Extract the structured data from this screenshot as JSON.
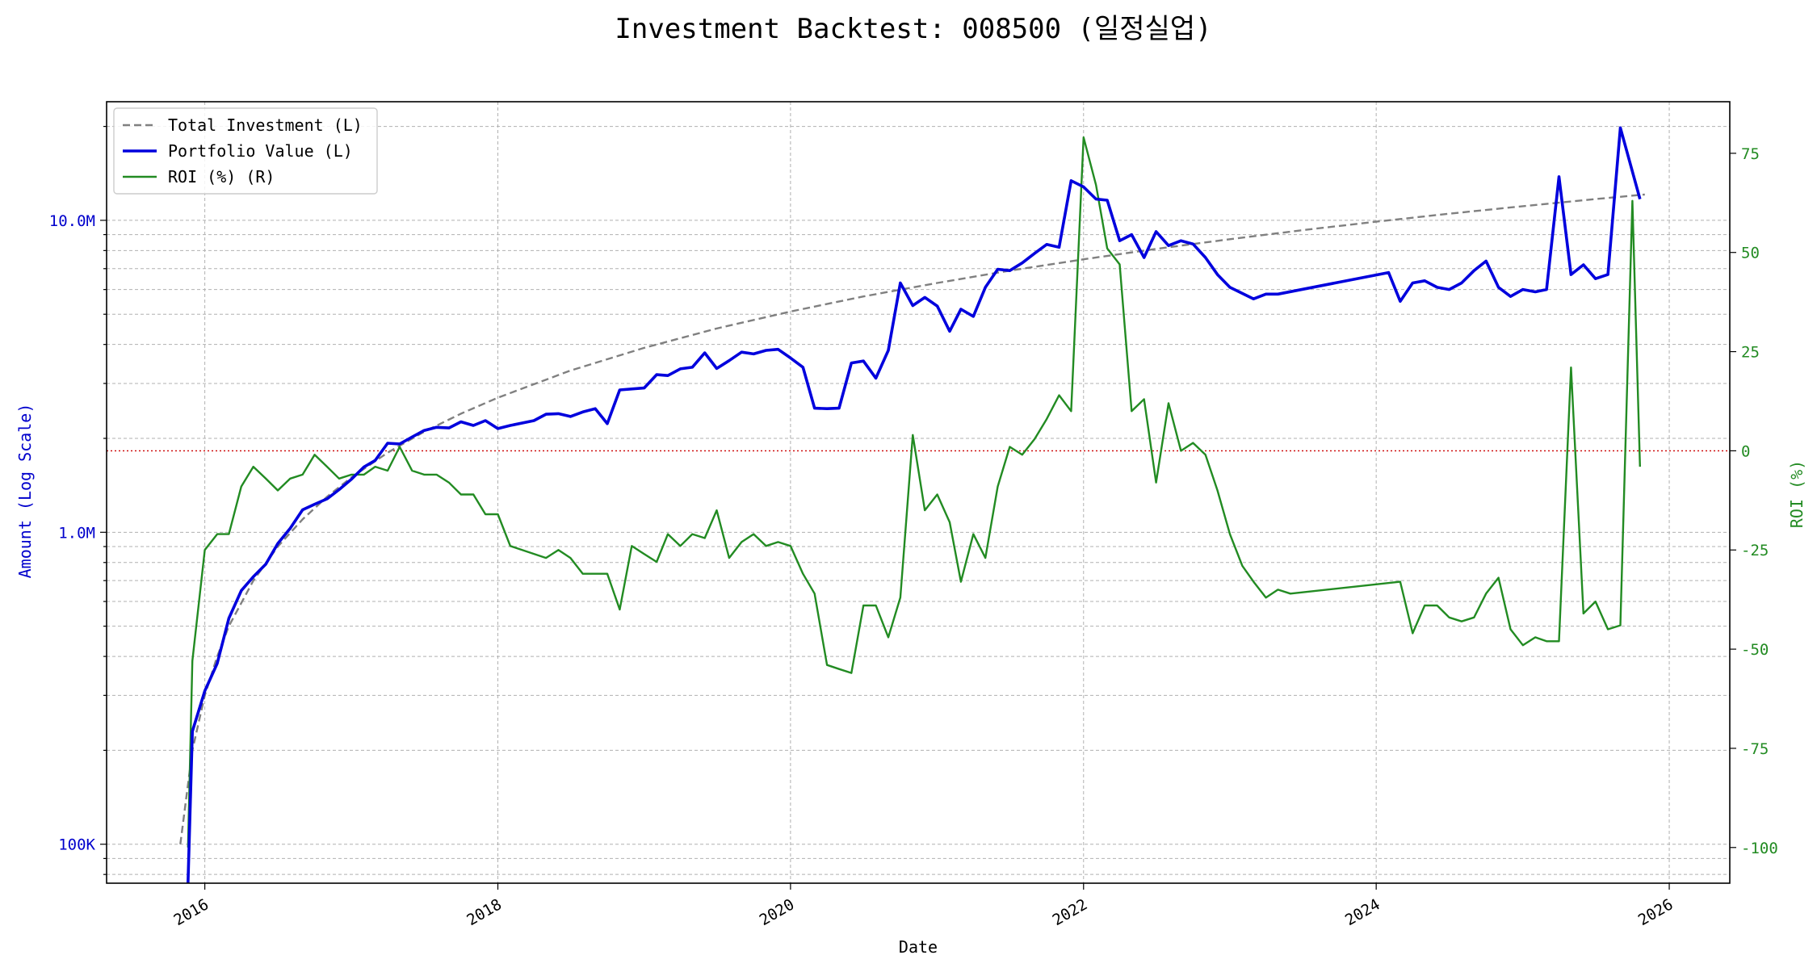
{
  "chart_data": {
    "type": "line",
    "title": "Investment Backtest: 008500 (일정실업)",
    "xlabel": "Date",
    "ylabel_left": "Amount (Log Scale)",
    "ylabel_right": "ROI (%)",
    "y_left_scale": "log",
    "y_left_range": [
      75000,
      24000000
    ],
    "y_left_ticks": [
      {
        "value": 100000,
        "label": "100K"
      },
      {
        "value": 1000000,
        "label": "1.0M"
      },
      {
        "value": 10000000,
        "label": "10.0M"
      }
    ],
    "y_right_range": [
      -109,
      88
    ],
    "y_right_ticks": [
      -100,
      -75,
      -50,
      -25,
      0,
      25,
      50,
      75
    ],
    "x_range": [
      "2015-05-01",
      "2026-06-01"
    ],
    "x_ticks": [
      "2016",
      "2018",
      "2020",
      "2022",
      "2024",
      "2026"
    ],
    "grid": true,
    "legend_position": "top-left",
    "zero_line": {
      "axis": "right",
      "value": 0,
      "color": "#cc0000",
      "style": "dotted"
    },
    "series": [
      {
        "name": "Total Investment (L)",
        "axis": "left",
        "color": "#808080",
        "style": "dashed",
        "points": [
          [
            "2015-11-01",
            100000
          ],
          [
            "2015-12-01",
            200000
          ],
          [
            "2016-01-01",
            300000
          ],
          [
            "2016-02-01",
            400000
          ],
          [
            "2016-03-01",
            500000
          ],
          [
            "2016-05-01",
            700000
          ],
          [
            "2016-07-01",
            900000
          ],
          [
            "2016-09-01",
            1100000
          ],
          [
            "2016-11-01",
            1300000
          ],
          [
            "2017-01-01",
            1500000
          ],
          [
            "2017-04-01",
            1800000
          ],
          [
            "2017-07-01",
            2100000
          ],
          [
            "2017-10-01",
            2400000
          ],
          [
            "2018-01-01",
            2700000
          ],
          [
            "2018-07-01",
            3300000
          ],
          [
            "2019-01-01",
            3900000
          ],
          [
            "2019-07-01",
            4500000
          ],
          [
            "2020-01-01",
            5100000
          ],
          [
            "2020-07-01",
            5700000
          ],
          [
            "2021-01-01",
            6300000
          ],
          [
            "2021-07-01",
            6900000
          ],
          [
            "2022-01-01",
            7500000
          ],
          [
            "2022-07-01",
            8100000
          ],
          [
            "2023-01-01",
            8700000
          ],
          [
            "2023-07-01",
            9300000
          ],
          [
            "2024-01-01",
            9900000
          ],
          [
            "2024-07-01",
            10500000
          ],
          [
            "2025-01-01",
            11100000
          ],
          [
            "2025-07-01",
            11700000
          ],
          [
            "2025-11-01",
            12100000
          ]
        ]
      },
      {
        "name": "Portfolio Value (L)",
        "axis": "left",
        "color": "#0000dd",
        "style": "solid",
        "points": [
          [
            "2015-11-20",
            60000
          ],
          [
            "2015-12-01",
            230000
          ],
          [
            "2016-01-01",
            310000
          ],
          [
            "2016-02-01",
            380000
          ],
          [
            "2016-03-01",
            530000
          ],
          [
            "2016-04-01",
            650000
          ],
          [
            "2016-05-01",
            720000
          ],
          [
            "2016-06-01",
            790000
          ],
          [
            "2016-07-01",
            920000
          ],
          [
            "2016-08-01",
            1030000
          ],
          [
            "2016-09-01",
            1180000
          ],
          [
            "2016-10-01",
            1230000
          ],
          [
            "2016-11-01",
            1280000
          ],
          [
            "2016-12-01",
            1370000
          ],
          [
            "2017-01-01",
            1480000
          ],
          [
            "2017-02-01",
            1620000
          ],
          [
            "2017-03-01",
            1700000
          ],
          [
            "2017-04-01",
            1930000
          ],
          [
            "2017-05-01",
            1920000
          ],
          [
            "2017-06-01",
            2020000
          ],
          [
            "2017-07-01",
            2120000
          ],
          [
            "2017-08-01",
            2170000
          ],
          [
            "2017-09-01",
            2160000
          ],
          [
            "2017-10-01",
            2260000
          ],
          [
            "2017-11-01",
            2200000
          ],
          [
            "2017-12-01",
            2280000
          ],
          [
            "2018-01-01",
            2150000
          ],
          [
            "2018-02-01",
            2200000
          ],
          [
            "2018-04-01",
            2280000
          ],
          [
            "2018-05-01",
            2390000
          ],
          [
            "2018-06-01",
            2400000
          ],
          [
            "2018-07-01",
            2350000
          ],
          [
            "2018-08-01",
            2430000
          ],
          [
            "2018-09-01",
            2490000
          ],
          [
            "2018-10-01",
            2230000
          ],
          [
            "2018-11-01",
            2860000
          ],
          [
            "2019-01-01",
            2900000
          ],
          [
            "2019-02-01",
            3200000
          ],
          [
            "2019-03-01",
            3180000
          ],
          [
            "2019-04-01",
            3340000
          ],
          [
            "2019-05-01",
            3380000
          ],
          [
            "2019-06-01",
            3760000
          ],
          [
            "2019-07-01",
            3350000
          ],
          [
            "2019-08-01",
            3550000
          ],
          [
            "2019-09-01",
            3780000
          ],
          [
            "2019-10-01",
            3730000
          ],
          [
            "2019-11-01",
            3830000
          ],
          [
            "2019-12-01",
            3860000
          ],
          [
            "2020-01-01",
            3620000
          ],
          [
            "2020-02-01",
            3380000
          ],
          [
            "2020-03-01",
            2500000
          ],
          [
            "2020-04-01",
            2490000
          ],
          [
            "2020-05-01",
            2500000
          ],
          [
            "2020-06-01",
            3490000
          ],
          [
            "2020-07-01",
            3540000
          ],
          [
            "2020-08-01",
            3120000
          ],
          [
            "2020-09-01",
            3830000
          ],
          [
            "2020-10-01",
            6300000
          ],
          [
            "2020-11-01",
            5330000
          ],
          [
            "2020-12-01",
            5660000
          ],
          [
            "2021-01-01",
            5310000
          ],
          [
            "2021-02-01",
            4410000
          ],
          [
            "2021-03-01",
            5190000
          ],
          [
            "2021-04-01",
            4920000
          ],
          [
            "2021-05-01",
            6100000
          ],
          [
            "2021-06-01",
            6970000
          ],
          [
            "2021-07-01",
            6900000
          ],
          [
            "2021-08-01",
            7300000
          ],
          [
            "2021-09-01",
            7840000
          ],
          [
            "2021-10-01",
            8370000
          ],
          [
            "2021-11-01",
            8200000
          ],
          [
            "2021-12-01",
            13400000
          ],
          [
            "2022-01-01",
            12800000
          ],
          [
            "2022-02-01",
            11700000
          ],
          [
            "2022-03-01",
            11600000
          ],
          [
            "2022-04-01",
            8600000
          ],
          [
            "2022-05-01",
            9000000
          ],
          [
            "2022-06-01",
            7600000
          ],
          [
            "2022-07-01",
            9200000
          ],
          [
            "2022-08-01",
            8300000
          ],
          [
            "2022-09-01",
            8600000
          ],
          [
            "2022-10-01",
            8400000
          ],
          [
            "2022-11-01",
            7600000
          ],
          [
            "2022-12-01",
            6700000
          ],
          [
            "2023-01-01",
            6100000
          ],
          [
            "2023-03-01",
            5600000
          ],
          [
            "2023-04-01",
            5800000
          ],
          [
            "2023-05-01",
            5800000
          ],
          [
            "2024-02-01",
            6800000
          ],
          [
            "2024-03-01",
            5500000
          ],
          [
            "2024-04-01",
            6300000
          ],
          [
            "2024-05-01",
            6400000
          ],
          [
            "2024-06-01",
            6100000
          ],
          [
            "2024-07-01",
            6000000
          ],
          [
            "2024-08-01",
            6300000
          ],
          [
            "2024-09-01",
            6900000
          ],
          [
            "2024-10-01",
            7400000
          ],
          [
            "2024-11-01",
            6100000
          ],
          [
            "2024-12-01",
            5700000
          ],
          [
            "2025-01-01",
            6000000
          ],
          [
            "2025-02-01",
            5900000
          ],
          [
            "2025-03-01",
            6000000
          ],
          [
            "2025-04-01",
            13800000
          ],
          [
            "2025-05-01",
            6700000
          ],
          [
            "2025-06-01",
            7200000
          ],
          [
            "2025-07-01",
            6500000
          ],
          [
            "2025-08-01",
            6700000
          ],
          [
            "2025-09-01",
            19800000
          ],
          [
            "2025-10-20",
            11700000
          ]
        ]
      },
      {
        "name": "ROI (%) (R)",
        "axis": "right",
        "color": "#228b22",
        "style": "solid",
        "points": [
          [
            "2015-11-20",
            -100
          ],
          [
            "2015-12-01",
            -53
          ],
          [
            "2016-01-01",
            -25
          ],
          [
            "2016-02-01",
            -21
          ],
          [
            "2016-03-01",
            -21
          ],
          [
            "2016-04-01",
            -9
          ],
          [
            "2016-05-01",
            -4
          ],
          [
            "2016-06-01",
            -7
          ],
          [
            "2016-07-01",
            -10
          ],
          [
            "2016-08-01",
            -7
          ],
          [
            "2016-09-01",
            -6
          ],
          [
            "2016-10-01",
            -1
          ],
          [
            "2016-11-01",
            -4
          ],
          [
            "2016-12-01",
            -7
          ],
          [
            "2017-01-01",
            -6
          ],
          [
            "2017-02-01",
            -6
          ],
          [
            "2017-03-01",
            -4
          ],
          [
            "2017-04-01",
            -5
          ],
          [
            "2017-05-01",
            1
          ],
          [
            "2017-06-01",
            -5
          ],
          [
            "2017-07-01",
            -6
          ],
          [
            "2017-08-01",
            -6
          ],
          [
            "2017-09-01",
            -8
          ],
          [
            "2017-10-01",
            -11
          ],
          [
            "2017-11-01",
            -11
          ],
          [
            "2017-12-01",
            -16
          ],
          [
            "2018-01-01",
            -16
          ],
          [
            "2018-02-01",
            -24
          ],
          [
            "2018-05-01",
            -27
          ],
          [
            "2018-06-01",
            -25
          ],
          [
            "2018-07-01",
            -27
          ],
          [
            "2018-08-01",
            -31
          ],
          [
            "2018-09-01",
            -31
          ],
          [
            "2018-10-01",
            -31
          ],
          [
            "2018-11-01",
            -40
          ],
          [
            "2018-12-01",
            -24
          ],
          [
            "2019-01-01",
            -26
          ],
          [
            "2019-02-01",
            -28
          ],
          [
            "2019-03-01",
            -21
          ],
          [
            "2019-04-01",
            -24
          ],
          [
            "2019-05-01",
            -21
          ],
          [
            "2019-06-01",
            -22
          ],
          [
            "2019-07-01",
            -15
          ],
          [
            "2019-08-01",
            -27
          ],
          [
            "2019-09-01",
            -23
          ],
          [
            "2019-10-01",
            -21
          ],
          [
            "2019-11-01",
            -24
          ],
          [
            "2019-12-01",
            -23
          ],
          [
            "2020-01-01",
            -24
          ],
          [
            "2020-02-01",
            -31
          ],
          [
            "2020-03-01",
            -36
          ],
          [
            "2020-04-01",
            -54
          ],
          [
            "2020-05-01",
            -55
          ],
          [
            "2020-06-01",
            -56
          ],
          [
            "2020-07-01",
            -39
          ],
          [
            "2020-08-01",
            -39
          ],
          [
            "2020-09-01",
            -47
          ],
          [
            "2020-10-01",
            -37
          ],
          [
            "2020-11-01",
            4
          ],
          [
            "2020-12-01",
            -15
          ],
          [
            "2021-01-01",
            -11
          ],
          [
            "2021-02-01",
            -18
          ],
          [
            "2021-03-01",
            -33
          ],
          [
            "2021-04-01",
            -21
          ],
          [
            "2021-05-01",
            -27
          ],
          [
            "2021-06-01",
            -9
          ],
          [
            "2021-07-01",
            1
          ],
          [
            "2021-08-01",
            -1
          ],
          [
            "2021-09-01",
            3
          ],
          [
            "2021-10-01",
            8
          ],
          [
            "2021-11-01",
            14
          ],
          [
            "2021-12-01",
            10
          ],
          [
            "2022-01-01",
            79
          ],
          [
            "2022-02-01",
            67
          ],
          [
            "2022-03-01",
            51
          ],
          [
            "2022-04-01",
            47
          ],
          [
            "2022-05-01",
            10
          ],
          [
            "2022-06-01",
            13
          ],
          [
            "2022-07-01",
            -8
          ],
          [
            "2022-08-01",
            12
          ],
          [
            "2022-09-01",
            0
          ],
          [
            "2022-10-01",
            2
          ],
          [
            "2022-11-01",
            -1
          ],
          [
            "2022-12-01",
            -10
          ],
          [
            "2023-01-01",
            -21
          ],
          [
            "2023-02-01",
            -29
          ],
          [
            "2023-03-01",
            -33
          ],
          [
            "2023-04-01",
            -37
          ],
          [
            "2023-05-01",
            -35
          ],
          [
            "2023-06-01",
            -36
          ],
          [
            "2024-03-01",
            -33
          ],
          [
            "2024-04-01",
            -46
          ],
          [
            "2024-05-01",
            -39
          ],
          [
            "2024-06-01",
            -39
          ],
          [
            "2024-07-01",
            -42
          ],
          [
            "2024-08-01",
            -43
          ],
          [
            "2024-09-01",
            -42
          ],
          [
            "2024-10-01",
            -36
          ],
          [
            "2024-11-01",
            -32
          ],
          [
            "2024-12-01",
            -45
          ],
          [
            "2025-01-01",
            -49
          ],
          [
            "2025-02-01",
            -47
          ],
          [
            "2025-03-01",
            -48
          ],
          [
            "2025-04-01",
            -48
          ],
          [
            "2025-05-01",
            21
          ],
          [
            "2025-06-01",
            -41
          ],
          [
            "2025-07-01",
            -38
          ],
          [
            "2025-08-01",
            -45
          ],
          [
            "2025-09-01",
            -44
          ],
          [
            "2025-10-01",
            63
          ],
          [
            "2025-10-20",
            -4
          ]
        ]
      }
    ]
  }
}
